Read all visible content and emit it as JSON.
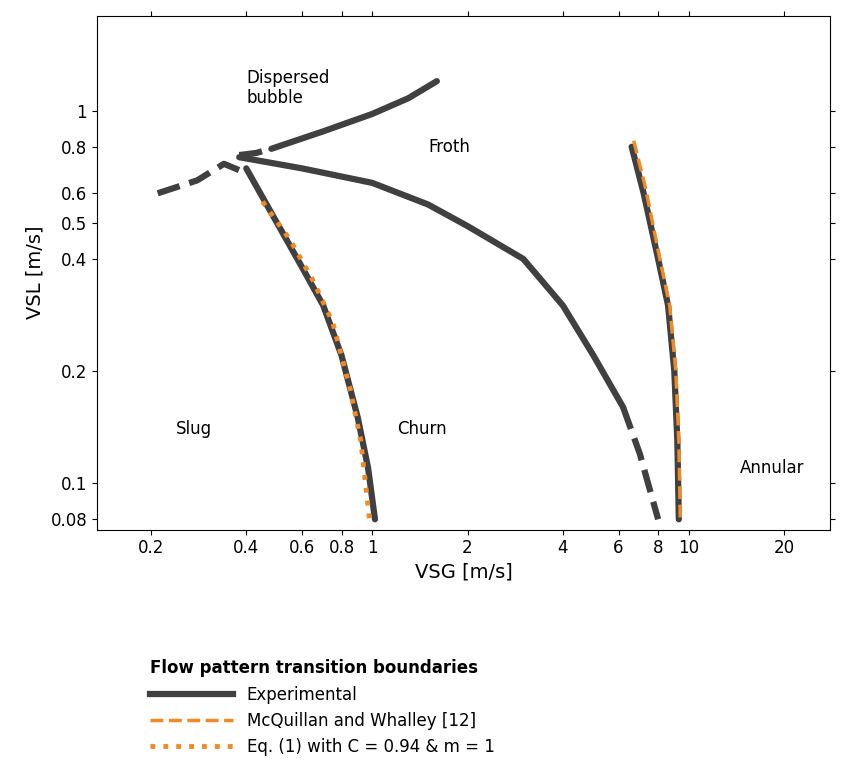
{
  "chart_data": {
    "type": "line",
    "xlabel": "VSG [m/s]",
    "ylabel": "VSL [m/s]",
    "log": true,
    "xlim": [
      0.135,
      28
    ],
    "ylim": [
      0.075,
      1.8
    ],
    "xticks": [
      0.2,
      0.4,
      0.6,
      0.8,
      1,
      2,
      4,
      6,
      8,
      10,
      20
    ],
    "yticks": [
      0.08,
      0.1,
      0.2,
      0.4,
      0.5,
      0.6,
      0.8,
      1
    ],
    "legend": "lower left",
    "legend_title": "Flow pattern transition boundaries",
    "series": [
      {
        "name": "Experimental",
        "color": "#404040",
        "line_style": "solid",
        "lines": [
          {
            "line_style": "dashed",
            "x": [
              0.21,
              0.28,
              0.34,
              0.4
            ],
            "y": [
              0.6,
              0.65,
              0.72,
              0.68
            ]
          },
          {
            "line_style": "dashed",
            "x": [
              0.38,
              0.43,
              0.48
            ],
            "y": [
              0.76,
              0.77,
              0.79
            ]
          },
          {
            "line_style": "solid",
            "x": [
              0.48,
              0.7,
              1.0,
              1.3,
              1.6
            ],
            "y": [
              0.79,
              0.88,
              0.98,
              1.08,
              1.2
            ]
          },
          {
            "line_style": "solid",
            "x": [
              0.38,
              0.6,
              1.0,
              1.5,
              2.0,
              3.0,
              4.0,
              5.0,
              6.2
            ],
            "y": [
              0.75,
              0.7,
              0.64,
              0.56,
              0.49,
              0.4,
              0.3,
              0.22,
              0.16
            ]
          },
          {
            "line_style": "dashed",
            "x": [
              6.2,
              7.0,
              8.0
            ],
            "y": [
              0.16,
              0.12,
              0.08
            ]
          },
          {
            "line_style": "solid",
            "x": [
              0.4,
              0.5,
              0.6,
              0.7,
              0.8,
              0.9,
              0.97,
              1.02
            ],
            "y": [
              0.7,
              0.5,
              0.38,
              0.3,
              0.22,
              0.15,
              0.11,
              0.08
            ]
          },
          {
            "line_style": "solid",
            "x": [
              6.6,
              7.2,
              8.0,
              8.6,
              9.0,
              9.2,
              9.3
            ],
            "y": [
              0.8,
              0.6,
              0.4,
              0.3,
              0.2,
              0.13,
              0.08
            ]
          }
        ]
      },
      {
        "name": "McQuillan and Whalley [12]",
        "color": "#f08a24",
        "line_style": "dashed",
        "lines": [
          {
            "line_style": "dashed",
            "x": [
              6.7,
              7.3,
              8.1,
              8.7,
              9.1,
              9.3,
              9.4
            ],
            "y": [
              0.83,
              0.62,
              0.4,
              0.3,
              0.2,
              0.13,
              0.08
            ]
          }
        ]
      },
      {
        "name": "Eq. (1) with C = 0.94 & m = 1",
        "color": "#f08a24",
        "line_style": "dotted",
        "lines": [
          {
            "line_style": "dotted",
            "x": [
              0.45,
              0.55,
              0.65,
              0.75,
              0.85,
              0.92,
              0.98
            ],
            "y": [
              0.57,
              0.45,
              0.35,
              0.27,
              0.18,
              0.13,
              0.08
            ]
          }
        ]
      }
    ],
    "annotations": [
      {
        "text": "Dispersed\nbubble",
        "x": 0.4,
        "y": 1.15
      },
      {
        "text": "Froth",
        "x": 1.5,
        "y": 0.8
      },
      {
        "text": "Slug",
        "x": 0.24,
        "y": 0.14
      },
      {
        "text": "Churn",
        "x": 1.2,
        "y": 0.14
      },
      {
        "text": "Annular",
        "x": 14.5,
        "y": 0.11
      }
    ]
  }
}
